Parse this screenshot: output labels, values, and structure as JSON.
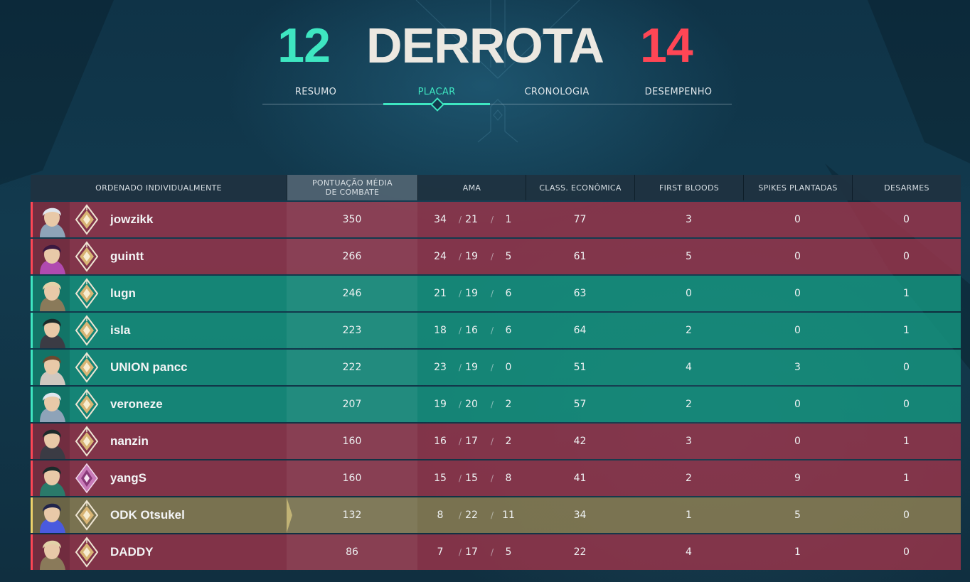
{
  "header": {
    "ally_score": "12",
    "result": "DERROTA",
    "enemy_score": "14"
  },
  "tabs": [
    {
      "label": "RESUMO"
    },
    {
      "label": "PLACAR",
      "active": true
    },
    {
      "label": "CRONOLOGIA"
    },
    {
      "label": "DESEMPENHO"
    }
  ],
  "columns": {
    "sort": "ORDENADO INDIVIDUALMENTE",
    "acs_line1": "PONTUAÇÃO MÉDIA",
    "acs_line2": "DE COMBATE",
    "kda": "AMA",
    "econ": "CLASS. ECONÔMICA",
    "first_bloods": "FIRST BLOODS",
    "plants": "SPIKES PLANTADAS",
    "defuses": "DESARMES"
  },
  "colors": {
    "ally": "#3ee6c1",
    "enemy": "#ff4655",
    "self": "#eed36a"
  },
  "players": [
    {
      "name": "jowzikk",
      "team": "enemy",
      "agent": "jett-portrait",
      "rank_icon": "platinum-rank-icon",
      "acs": "350",
      "k": "34",
      "d": "21",
      "a": "1",
      "econ": "77",
      "fb": "3",
      "plants": "0",
      "defuses": "0"
    },
    {
      "name": "guintt",
      "team": "enemy",
      "agent": "reyna-portrait",
      "rank_icon": "platinum-rank-icon",
      "acs": "266",
      "k": "24",
      "d": "19",
      "a": "5",
      "econ": "61",
      "fb": "5",
      "plants": "0",
      "defuses": "0"
    },
    {
      "name": "lugn",
      "team": "ally",
      "agent": "sova-portrait",
      "rank_icon": "platinum-rank-icon",
      "acs": "246",
      "k": "21",
      "d": "19",
      "a": "6",
      "econ": "63",
      "fb": "0",
      "plants": "0",
      "defuses": "1"
    },
    {
      "name": "isla",
      "team": "ally",
      "agent": "viper-portrait",
      "rank_icon": "platinum-rank-icon",
      "acs": "223",
      "k": "18",
      "d": "16",
      "a": "6",
      "econ": "64",
      "fb": "2",
      "plants": "0",
      "defuses": "1"
    },
    {
      "name": "UNION pancc",
      "team": "ally",
      "agent": "chamber-portrait",
      "rank_icon": "platinum-rank-icon",
      "acs": "222",
      "k": "23",
      "d": "19",
      "a": "0",
      "econ": "51",
      "fb": "4",
      "plants": "3",
      "defuses": "0"
    },
    {
      "name": "veroneze",
      "team": "ally",
      "agent": "jett-portrait",
      "rank_icon": "platinum-rank-icon",
      "acs": "207",
      "k": "19",
      "d": "20",
      "a": "2",
      "econ": "57",
      "fb": "2",
      "plants": "0",
      "defuses": "0"
    },
    {
      "name": "nanzin",
      "team": "enemy",
      "agent": "viper-portrait",
      "rank_icon": "platinum-rank-icon",
      "acs": "160",
      "k": "16",
      "d": "17",
      "a": "2",
      "econ": "42",
      "fb": "3",
      "plants": "0",
      "defuses": "1"
    },
    {
      "name": "yangS",
      "team": "enemy",
      "agent": "sage-portrait",
      "rank_icon": "diamond-rank-icon",
      "acs": "160",
      "k": "15",
      "d": "15",
      "a": "8",
      "econ": "41",
      "fb": "2",
      "plants": "9",
      "defuses": "1"
    },
    {
      "name": "ODK Otsukel",
      "team": "self",
      "agent": "omen-portrait",
      "rank_icon": "platinum-rank-icon",
      "acs": "132",
      "k": "8",
      "d": "22",
      "a": "11",
      "econ": "34",
      "fb": "1",
      "plants": "5",
      "defuses": "0"
    },
    {
      "name": "DADDY",
      "team": "enemy",
      "agent": "sova-portrait",
      "rank_icon": "platinum-rank-icon",
      "acs": "86",
      "k": "7",
      "d": "17",
      "a": "5",
      "econ": "22",
      "fb": "4",
      "plants": "1",
      "defuses": "0"
    }
  ]
}
